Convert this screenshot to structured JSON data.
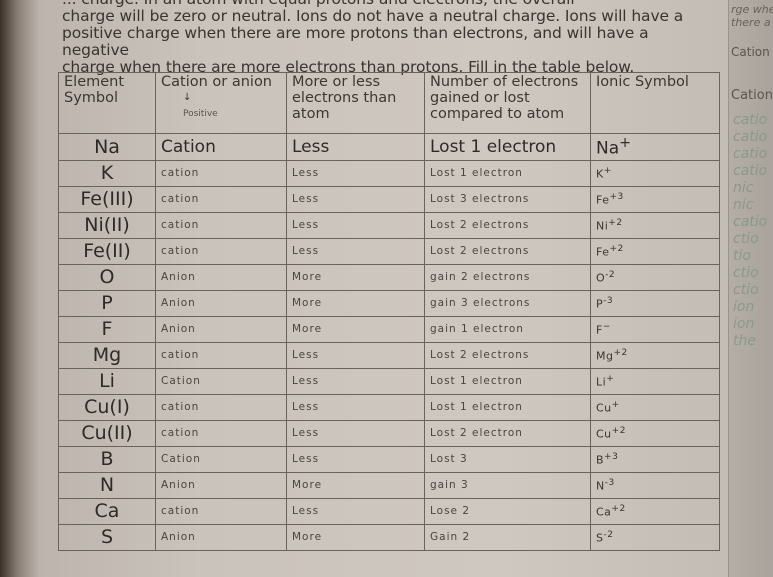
{
  "intro_lines": [
    "... charge.  In an atom with equal protons and electrons, the overall",
    "charge will be zero or neutral.  Ions do not have a neutral charge.  Ions will have a",
    "positive charge when there are more protons than electrons, and will have a negative",
    "charge when there are more electrons than protons.  Fill in the table below."
  ],
  "side_page": {
    "line1": "rge whe",
    "line2": "there a",
    "header": "Cation o",
    "row1": "Cation",
    "hand": [
      "catio",
      "catio",
      "catio",
      "catio",
      "nic",
      "nic",
      "catio",
      "ctio",
      "tio",
      "ctio",
      "ctio",
      "ion",
      "ion",
      "the"
    ]
  },
  "table": {
    "headers": [
      "Element Symbol",
      "Cation or anion",
      "More or less electrons than atom",
      "Number of electrons gained or lost compared to atom",
      "Ionic Symbol"
    ],
    "header_note_arrow": "↓",
    "header_note": "Positive",
    "rows": [
      {
        "element": "Na",
        "type": "Cation",
        "more_less": "Less",
        "electrons": "Lost 1 electron",
        "ion": "Na",
        "charge": "+",
        "printed": true
      },
      {
        "element": "K",
        "type": "cation",
        "more_less": "Less",
        "electrons": "Lost 1 electron",
        "ion": "K",
        "charge": "+"
      },
      {
        "element": "Fe(III)",
        "type": "cation",
        "more_less": "Less",
        "electrons": "Lost 3 electrons",
        "ion": "Fe",
        "charge": "+3"
      },
      {
        "element": "Ni(II)",
        "type": "cation",
        "more_less": "Less",
        "electrons": "Lost 2 electrons",
        "ion": "Ni",
        "charge": "+2"
      },
      {
        "element": "Fe(II)",
        "type": "cation",
        "more_less": "Less",
        "electrons": "Lost 2 electrons",
        "ion": "Fe",
        "charge": "+2"
      },
      {
        "element": "O",
        "type": "Anion",
        "more_less": "More",
        "electrons": "gain 2 electrons",
        "ion": "O",
        "charge": "-2"
      },
      {
        "element": "P",
        "type": "Anion",
        "more_less": "More",
        "electrons": "gain 3 electrons",
        "ion": "P",
        "charge": "-3"
      },
      {
        "element": "F",
        "type": "Anion",
        "more_less": "More",
        "electrons": "gain 1 electron",
        "ion": "F",
        "charge": "−"
      },
      {
        "element": "Mg",
        "type": "cation",
        "more_less": "Less",
        "electrons": "Lost 2 electrons",
        "ion": "Mg",
        "charge": "+2"
      },
      {
        "element": "Li",
        "type": "Cation",
        "more_less": "Less",
        "electrons": "Lost 1 electron",
        "ion": "Li",
        "charge": "+"
      },
      {
        "element": "Cu(I)",
        "type": "cation",
        "more_less": "Less",
        "electrons": "Lost 1 electron",
        "ion": "Cu",
        "charge": "+"
      },
      {
        "element": "Cu(II)",
        "type": "cation",
        "more_less": "Less",
        "electrons": "Lost 2 electron",
        "ion": "Cu",
        "charge": "+2"
      },
      {
        "element": "B",
        "type": "Cation",
        "more_less": "Less",
        "electrons": "Lost 3",
        "ion": "B",
        "charge": "+3"
      },
      {
        "element": "N",
        "type": "Anion",
        "more_less": "More",
        "electrons": "gain 3",
        "ion": "N",
        "charge": "-3"
      },
      {
        "element": "Ca",
        "type": "cation",
        "more_less": "Less",
        "electrons": "Lose 2",
        "ion": "Ca",
        "charge": "+2"
      },
      {
        "element": "S",
        "type": "Anion",
        "more_less": "More",
        "electrons": "Gain 2",
        "ion": "S",
        "charge": "-2"
      }
    ]
  }
}
